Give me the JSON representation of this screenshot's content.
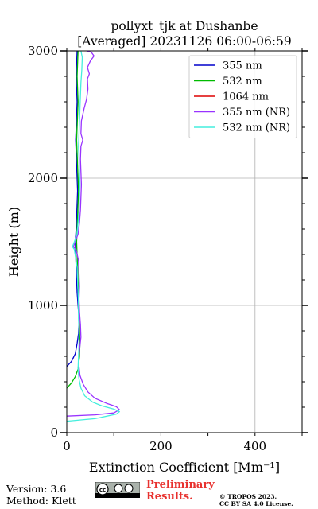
{
  "title": {
    "line1": "pollyxt_tjk at Dushanbe",
    "line2": "[Averaged] 20231126 06:00-06:59"
  },
  "footer": {
    "version": "Version: 3.6",
    "method": "Method: Klett",
    "preliminary_line1": "Preliminary",
    "preliminary_line2": "Results.",
    "copyright_line1": "© TROPOS 2023.",
    "copyright_line2": "CC BY SA 4.0 License.",
    "license_badge": "cc-by-sa-badge"
  },
  "chart_data": {
    "type": "line",
    "xlabel": "Extinction Coefficient [Mm⁻¹]",
    "ylabel": "Height (m)",
    "xlim": [
      0,
      500
    ],
    "ylim": [
      0,
      3000
    ],
    "xticks": [
      0,
      200,
      400
    ],
    "yticks": [
      0,
      1000,
      2000,
      3000
    ],
    "grid": true,
    "legend_position": "top-right",
    "series": [
      {
        "name": "355 nm",
        "color": "#0000cc",
        "points": [
          [
            0,
            520
          ],
          [
            10,
            560
          ],
          [
            18,
            620
          ],
          [
            22,
            700
          ],
          [
            25,
            780
          ],
          [
            26,
            900
          ],
          [
            24,
            1000
          ],
          [
            22,
            1100
          ],
          [
            21,
            1200
          ],
          [
            20,
            1300
          ],
          [
            19,
            1400
          ],
          [
            18,
            1500
          ],
          [
            20,
            1600
          ],
          [
            21,
            1700
          ],
          [
            22,
            1800
          ],
          [
            23,
            1900
          ],
          [
            22,
            2000
          ],
          [
            21,
            2100
          ],
          [
            20,
            2200
          ],
          [
            19,
            2300
          ],
          [
            20,
            2400
          ],
          [
            21,
            2500
          ],
          [
            22,
            2600
          ],
          [
            21,
            2700
          ],
          [
            20,
            2800
          ],
          [
            21,
            2900
          ],
          [
            22,
            3000
          ]
        ]
      },
      {
        "name": "532 nm",
        "color": "#00bb00",
        "points": [
          [
            0,
            350
          ],
          [
            10,
            390
          ],
          [
            18,
            440
          ],
          [
            24,
            500
          ],
          [
            27,
            600
          ],
          [
            28,
            700
          ],
          [
            27,
            800
          ],
          [
            26,
            900
          ],
          [
            25,
            1000
          ],
          [
            25,
            1100
          ],
          [
            24,
            1200
          ],
          [
            23,
            1300
          ],
          [
            22,
            1400
          ],
          [
            21,
            1500
          ],
          [
            22,
            1600
          ],
          [
            23,
            1700
          ],
          [
            24,
            1800
          ],
          [
            25,
            1900
          ],
          [
            24,
            2000
          ],
          [
            23,
            2100
          ],
          [
            22,
            2200
          ],
          [
            21,
            2300
          ],
          [
            22,
            2400
          ],
          [
            23,
            2500
          ],
          [
            24,
            2600
          ],
          [
            23,
            2700
          ],
          [
            22,
            2800
          ],
          [
            23,
            2900
          ],
          [
            24,
            3000
          ]
        ]
      },
      {
        "name": "1064 nm",
        "color": "#dd0000",
        "points": []
      },
      {
        "name": "355 nm (NR)",
        "color": "#9933ff",
        "points": [
          [
            0,
            130
          ],
          [
            60,
            140
          ],
          [
            100,
            155
          ],
          [
            112,
            180
          ],
          [
            105,
            205
          ],
          [
            85,
            230
          ],
          [
            60,
            270
          ],
          [
            45,
            320
          ],
          [
            35,
            380
          ],
          [
            28,
            450
          ],
          [
            25,
            550
          ],
          [
            27,
            650
          ],
          [
            30,
            750
          ],
          [
            29,
            850
          ],
          [
            27,
            950
          ],
          [
            26,
            1050
          ],
          [
            27,
            1150
          ],
          [
            26,
            1250
          ],
          [
            25,
            1350
          ],
          [
            20,
            1440
          ],
          [
            14,
            1460
          ],
          [
            18,
            1500
          ],
          [
            24,
            1560
          ],
          [
            27,
            1650
          ],
          [
            29,
            1750
          ],
          [
            30,
            1850
          ],
          [
            31,
            1950
          ],
          [
            30,
            2050
          ],
          [
            29,
            2150
          ],
          [
            30,
            2250
          ],
          [
            34,
            2300
          ],
          [
            30,
            2350
          ],
          [
            31,
            2450
          ],
          [
            37,
            2550
          ],
          [
            42,
            2620
          ],
          [
            45,
            2700
          ],
          [
            44,
            2780
          ],
          [
            48,
            2820
          ],
          [
            44,
            2870
          ],
          [
            50,
            2920
          ],
          [
            58,
            2960
          ],
          [
            52,
            2990
          ],
          [
            42,
            3000
          ]
        ]
      },
      {
        "name": "532 nm (NR)",
        "color": "#44eedd",
        "points": [
          [
            0,
            90
          ],
          [
            60,
            110
          ],
          [
            105,
            145
          ],
          [
            112,
            165
          ],
          [
            100,
            185
          ],
          [
            75,
            210
          ],
          [
            55,
            240
          ],
          [
            38,
            290
          ],
          [
            30,
            350
          ],
          [
            26,
            420
          ],
          [
            24,
            500
          ],
          [
            25,
            600
          ],
          [
            26,
            700
          ],
          [
            26,
            800
          ],
          [
            25,
            900
          ],
          [
            25,
            1000
          ],
          [
            24,
            1100
          ],
          [
            23,
            1200
          ],
          [
            22,
            1300
          ],
          [
            16,
            1440
          ],
          [
            12,
            1460
          ],
          [
            16,
            1500
          ],
          [
            22,
            1560
          ],
          [
            24,
            1650
          ],
          [
            26,
            1750
          ],
          [
            27,
            1850
          ],
          [
            28,
            1950
          ],
          [
            27,
            2050
          ],
          [
            26,
            2150
          ],
          [
            25,
            2250
          ],
          [
            26,
            2350
          ],
          [
            27,
            2450
          ],
          [
            28,
            2550
          ],
          [
            29,
            2650
          ],
          [
            30,
            2750
          ],
          [
            32,
            2850
          ],
          [
            33,
            2950
          ],
          [
            30,
            3000
          ]
        ]
      }
    ]
  }
}
